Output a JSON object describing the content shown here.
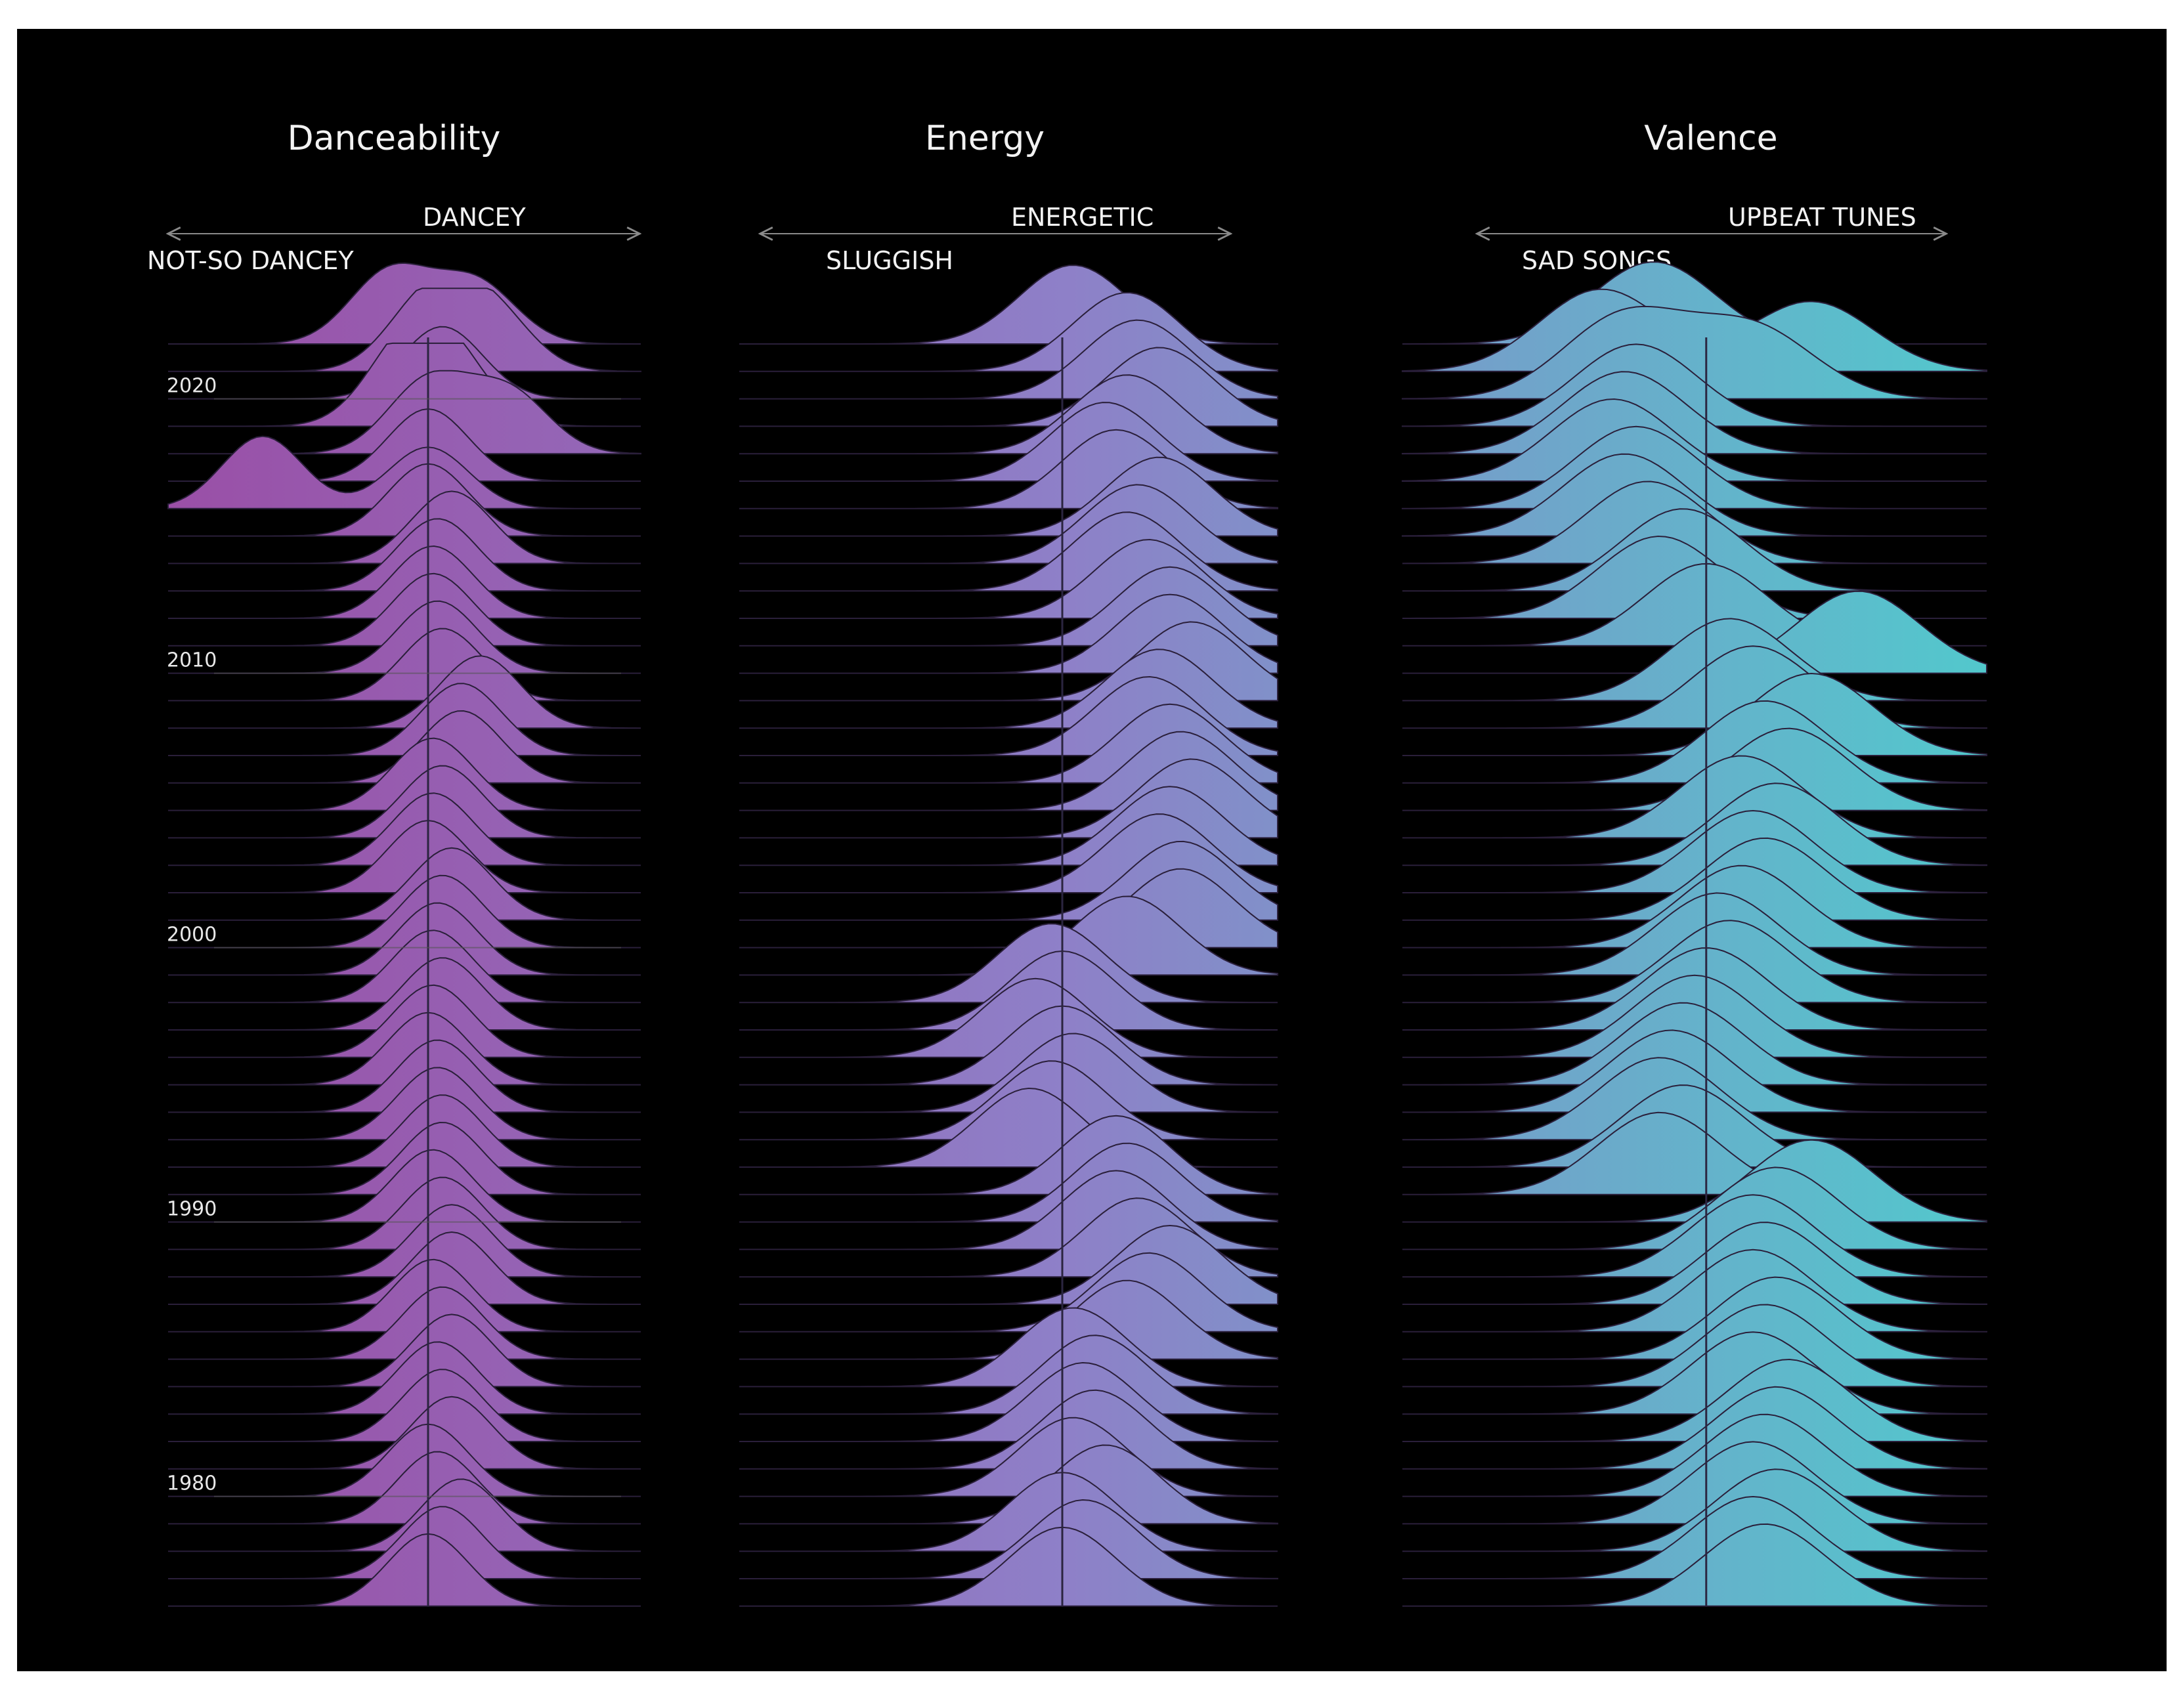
{
  "chart_data": {
    "type": "ridgeline",
    "colors": {
      "low": "#9a4ea6",
      "mid": "#8e80c8",
      "high": "#52c8cc",
      "background": "#000000"
    },
    "years": [
      2022,
      2021,
      2020,
      2019,
      2018,
      2017,
      2016,
      2015,
      2014,
      2013,
      2012,
      2011,
      2010,
      2009,
      2008,
      2007,
      2006,
      2005,
      2004,
      2003,
      2002,
      2001,
      2000,
      1999,
      1998,
      1997,
      1996,
      1995,
      1994,
      1993,
      1992,
      1991,
      1990,
      1989,
      1988,
      1987,
      1986,
      1985,
      1984,
      1983,
      1982,
      1981,
      1980,
      1979,
      1978,
      1977,
      1976
    ],
    "year_ticks": [
      "2020",
      "2010",
      "2000",
      "1990",
      "1980"
    ],
    "panels": [
      {
        "title": "Danceability",
        "left_label": "NOT-SO DANCEY",
        "right_label": "DANCEY",
        "axis_range": [
          0,
          1
        ],
        "median": 0.55,
        "peaks_by_year": [
          [
            0.47,
            0.65
          ],
          [
            0.55,
            0.68
          ],
          [
            0.58
          ],
          [
            0.5,
            0.6
          ],
          [
            0.55,
            0.72
          ],
          [
            0.55
          ],
          [
            0.2,
            0.55
          ],
          [
            0.55
          ],
          [
            0.6
          ],
          [
            0.57
          ],
          [
            0.56
          ],
          [
            0.56
          ],
          [
            0.57
          ],
          [
            0.58
          ],
          [
            0.66
          ],
          [
            0.62
          ],
          [
            0.62
          ],
          [
            0.56
          ],
          [
            0.58
          ],
          [
            0.56
          ],
          [
            0.55
          ],
          [
            0.6
          ],
          [
            0.58
          ],
          [
            0.57
          ],
          [
            0.56
          ],
          [
            0.58
          ],
          [
            0.56
          ],
          [
            0.55
          ],
          [
            0.57
          ],
          [
            0.57
          ],
          [
            0.58
          ],
          [
            0.58
          ],
          [
            0.56
          ],
          [
            0.58
          ],
          [
            0.6
          ],
          [
            0.6
          ],
          [
            0.56
          ],
          [
            0.58
          ],
          [
            0.6
          ],
          [
            0.57
          ],
          [
            0.58
          ],
          [
            0.6
          ],
          [
            0.55
          ],
          [
            0.57
          ],
          [
            0.62
          ],
          [
            0.58
          ],
          [
            0.55
          ]
        ]
      },
      {
        "title": "Energy",
        "left_label": "SLUGGISH",
        "right_label": "ENERGETIC",
        "axis_range": [
          0,
          1
        ],
        "median": 0.6,
        "peaks_by_year": [
          [
            0.62
          ],
          [
            0.72
          ],
          [
            0.74
          ],
          [
            0.78
          ],
          [
            0.72
          ],
          [
            0.68
          ],
          [
            0.7
          ],
          [
            0.78
          ],
          [
            0.74
          ],
          [
            0.72
          ],
          [
            0.76
          ],
          [
            0.8
          ],
          [
            0.8
          ],
          [
            0.84
          ],
          [
            0.78
          ],
          [
            0.76
          ],
          [
            0.8
          ],
          [
            0.82
          ],
          [
            0.84
          ],
          [
            0.8
          ],
          [
            0.78
          ],
          [
            0.82
          ],
          [
            0.82
          ],
          [
            0.72
          ],
          [
            0.58
          ],
          [
            0.6
          ],
          [
            0.55
          ],
          [
            0.6
          ],
          [
            0.62
          ],
          [
            0.58
          ],
          [
            0.54
          ],
          [
            0.7
          ],
          [
            0.72
          ],
          [
            0.7
          ],
          [
            0.74
          ],
          [
            0.8
          ],
          [
            0.76
          ],
          [
            0.72
          ],
          [
            0.62
          ],
          [
            0.66
          ],
          [
            0.64
          ],
          [
            0.66
          ],
          [
            0.62
          ],
          [
            0.68
          ],
          [
            0.6
          ],
          [
            0.64
          ],
          [
            0.6
          ]
        ]
      },
      {
        "title": "Valence",
        "left_label": "SAD SONGS",
        "right_label": "UPBEAT TUNES",
        "axis_range": [
          0,
          1
        ],
        "median": 0.52,
        "peaks_by_year": [
          [
            0.43
          ],
          [
            0.34,
            0.7
          ],
          [
            0.38,
            0.6
          ],
          [
            0.4
          ],
          [
            0.38
          ],
          [
            0.36
          ],
          [
            0.4
          ],
          [
            0.38
          ],
          [
            0.42
          ],
          [
            0.48
          ],
          [
            0.44
          ],
          [
            0.52
          ],
          [
            0.78
          ],
          [
            0.56
          ],
          [
            0.6
          ],
          [
            0.7
          ],
          [
            0.62
          ],
          [
            0.66
          ],
          [
            0.58
          ],
          [
            0.64
          ],
          [
            0.6
          ],
          [
            0.62
          ],
          [
            0.58
          ],
          [
            0.54
          ],
          [
            0.56
          ],
          [
            0.52
          ],
          [
            0.5
          ],
          [
            0.48
          ],
          [
            0.46
          ],
          [
            0.44
          ],
          [
            0.48
          ],
          [
            0.44
          ],
          [
            0.7
          ],
          [
            0.64
          ],
          [
            0.6
          ],
          [
            0.62
          ],
          [
            0.6
          ],
          [
            0.64
          ],
          [
            0.62
          ],
          [
            0.6
          ],
          [
            0.66
          ],
          [
            0.64
          ],
          [
            0.62
          ],
          [
            0.6
          ],
          [
            0.64
          ],
          [
            0.6
          ],
          [
            0.62
          ]
        ]
      }
    ]
  }
}
